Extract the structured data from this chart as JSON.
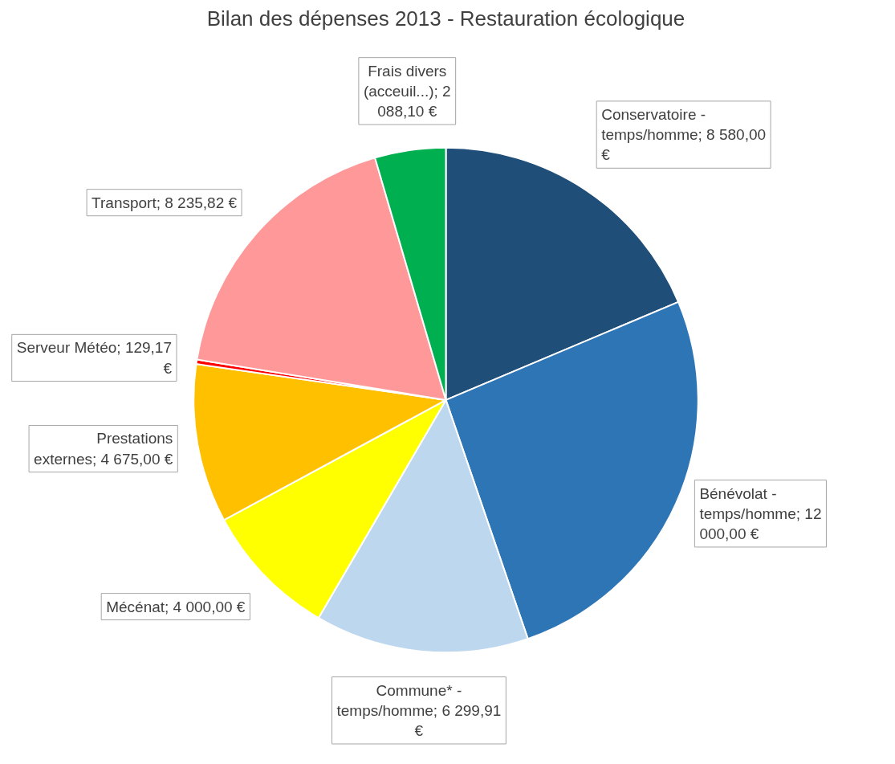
{
  "chart_data": {
    "type": "pie",
    "title": "Bilan des dépenses 2013 - Restauration écologique",
    "categories": [
      "Conservatoire - temps/homme",
      "Bénévolat - temps/homme",
      "Commune* - temps/homme",
      "Mécénat",
      "Prestations externes",
      "Serveur Météo",
      "Transport",
      "Frais divers (acceuil...)"
    ],
    "values": [
      8580.0,
      12000.0,
      6299.91,
      4000.0,
      4675.0,
      129.17,
      8235.82,
      2088.1
    ],
    "value_labels": [
      "8 580,00 €",
      "12 000,00 €",
      "6 299,91 €",
      "4 000,00 €",
      "4 675,00 €",
      "129,17 €",
      "8 235,82 €",
      "2 088,10 €"
    ],
    "colors": [
      "#1f4e79",
      "#2e75b6",
      "#bdd7ee",
      "#ffff00",
      "#ffc000",
      "#ff0000",
      "#ff9999",
      "#00b050"
    ],
    "legend": false
  }
}
